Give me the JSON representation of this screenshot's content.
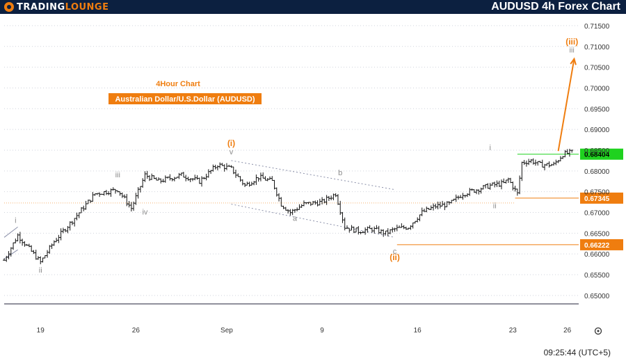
{
  "header": {
    "brand_main": "TRADING",
    "brand_accent": "LOUNGE",
    "title": "AUDUSD 4h Forex Chart"
  },
  "chart_labels": {
    "subtitle1": "4Hour Chart",
    "subtitle2": "Australian Dollar/U.S.Dollar (AUDUSD)"
  },
  "footer": {
    "time": "09:25:44 (UTC+5)"
  },
  "colors": {
    "orange": "#ef7d0f",
    "green": "#1fd21f",
    "grey_label": "#8c8c8c",
    "channel": "#8a8fa8",
    "candle": "#111111"
  },
  "chart_data": {
    "type": "candlestick",
    "ylim": [
      0.6478,
      0.7175
    ],
    "y_ticks": [
      "0.71500",
      "0.71000",
      "0.70500",
      "0.70000",
      "0.69500",
      "0.69000",
      "0.68500",
      "0.68000",
      "0.67500",
      "0.67000",
      "0.66500",
      "0.66000",
      "0.65500",
      "0.65000"
    ],
    "x_ticks": [
      {
        "label": "19",
        "bar": 16
      },
      {
        "label": "26",
        "bar": 58
      },
      {
        "label": "Sep",
        "bar": 98
      },
      {
        "label": "9",
        "bar": 140
      },
      {
        "label": "16",
        "bar": 182
      },
      {
        "label": "23",
        "bar": 224
      },
      {
        "label": "26",
        "bar": 248
      }
    ],
    "price_levels": [
      {
        "value": 0.68404,
        "label": "0.68404",
        "color": "green"
      },
      {
        "value": 0.67345,
        "label": "0.67345",
        "color": "orange"
      },
      {
        "value": 0.66222,
        "label": "0.66222",
        "color": "orange"
      }
    ],
    "closes_anchor": [
      [
        0,
        0.6585
      ],
      [
        6,
        0.6645
      ],
      [
        16,
        0.658
      ],
      [
        22,
        0.663
      ],
      [
        30,
        0.668
      ],
      [
        40,
        0.6745
      ],
      [
        50,
        0.6755
      ],
      [
        56,
        0.671
      ],
      [
        62,
        0.679
      ],
      [
        68,
        0.6775
      ],
      [
        78,
        0.679
      ],
      [
        86,
        0.6775
      ],
      [
        94,
        0.6815
      ],
      [
        100,
        0.6805
      ],
      [
        106,
        0.6765
      ],
      [
        112,
        0.6785
      ],
      [
        118,
        0.6775
      ],
      [
        122,
        0.672
      ],
      [
        126,
        0.67
      ],
      [
        132,
        0.672
      ],
      [
        140,
        0.6725
      ],
      [
        146,
        0.6745
      ],
      [
        150,
        0.6665
      ],
      [
        156,
        0.6655
      ],
      [
        162,
        0.666
      ],
      [
        168,
        0.665
      ],
      [
        172,
        0.666
      ],
      [
        178,
        0.6665
      ],
      [
        184,
        0.67
      ],
      [
        190,
        0.6715
      ],
      [
        196,
        0.672
      ],
      [
        202,
        0.6745
      ],
      [
        208,
        0.6755
      ],
      [
        214,
        0.6765
      ],
      [
        220,
        0.677
      ],
      [
        222,
        0.678
      ],
      [
        226,
        0.6745
      ],
      [
        228,
        0.682
      ],
      [
        232,
        0.6825
      ],
      [
        236,
        0.6815
      ],
      [
        242,
        0.6815
      ],
      [
        246,
        0.684
      ],
      [
        250,
        0.6845
      ]
    ],
    "wave_labels": [
      {
        "text": "i",
        "bar": 5,
        "price": 0.6675,
        "color": "grey"
      },
      {
        "text": "ii",
        "bar": 16,
        "price": 0.6555,
        "color": "grey"
      },
      {
        "text": "iii",
        "bar": 50,
        "price": 0.6785,
        "color": "grey"
      },
      {
        "text": "iv",
        "bar": 62,
        "price": 0.6695,
        "color": "grey"
      },
      {
        "text": "v",
        "bar": 100,
        "price": 0.684,
        "color": "grey"
      },
      {
        "text": "(i)",
        "bar": 100,
        "price": 0.686,
        "color": "orange"
      },
      {
        "text": "a",
        "bar": 128,
        "price": 0.668,
        "color": "grey"
      },
      {
        "text": "b",
        "bar": 148,
        "price": 0.679,
        "color": "grey"
      },
      {
        "text": "c",
        "bar": 172,
        "price": 0.66,
        "color": "grey"
      },
      {
        "text": "(ii)",
        "bar": 172,
        "price": 0.6585,
        "color": "orange"
      },
      {
        "text": "i",
        "bar": 214,
        "price": 0.685,
        "color": "grey"
      },
      {
        "text": "ii",
        "bar": 216,
        "price": 0.671,
        "color": "grey"
      },
      {
        "text": "iii",
        "bar": 250,
        "price": 0.7085,
        "color": "grey"
      },
      {
        "text": "(iii)",
        "bar": 250,
        "price": 0.7105,
        "color": "orange"
      }
    ],
    "projection": {
      "from_bar": 244,
      "from_price": 0.6848,
      "to_bar": 251,
      "to_price": 0.707
    },
    "channel": {
      "upper": [
        [
          100,
          0.6825
        ],
        [
          172,
          0.6755
        ]
      ],
      "lower": [
        [
          100,
          0.672
        ],
        [
          172,
          0.664
        ]
      ],
      "left_upper": [
        [
          0,
          0.664
        ],
        [
          6,
          0.6665
        ]
      ],
      "left_lower": [
        [
          0,
          0.6588
        ],
        [
          6,
          0.661
        ]
      ]
    }
  }
}
